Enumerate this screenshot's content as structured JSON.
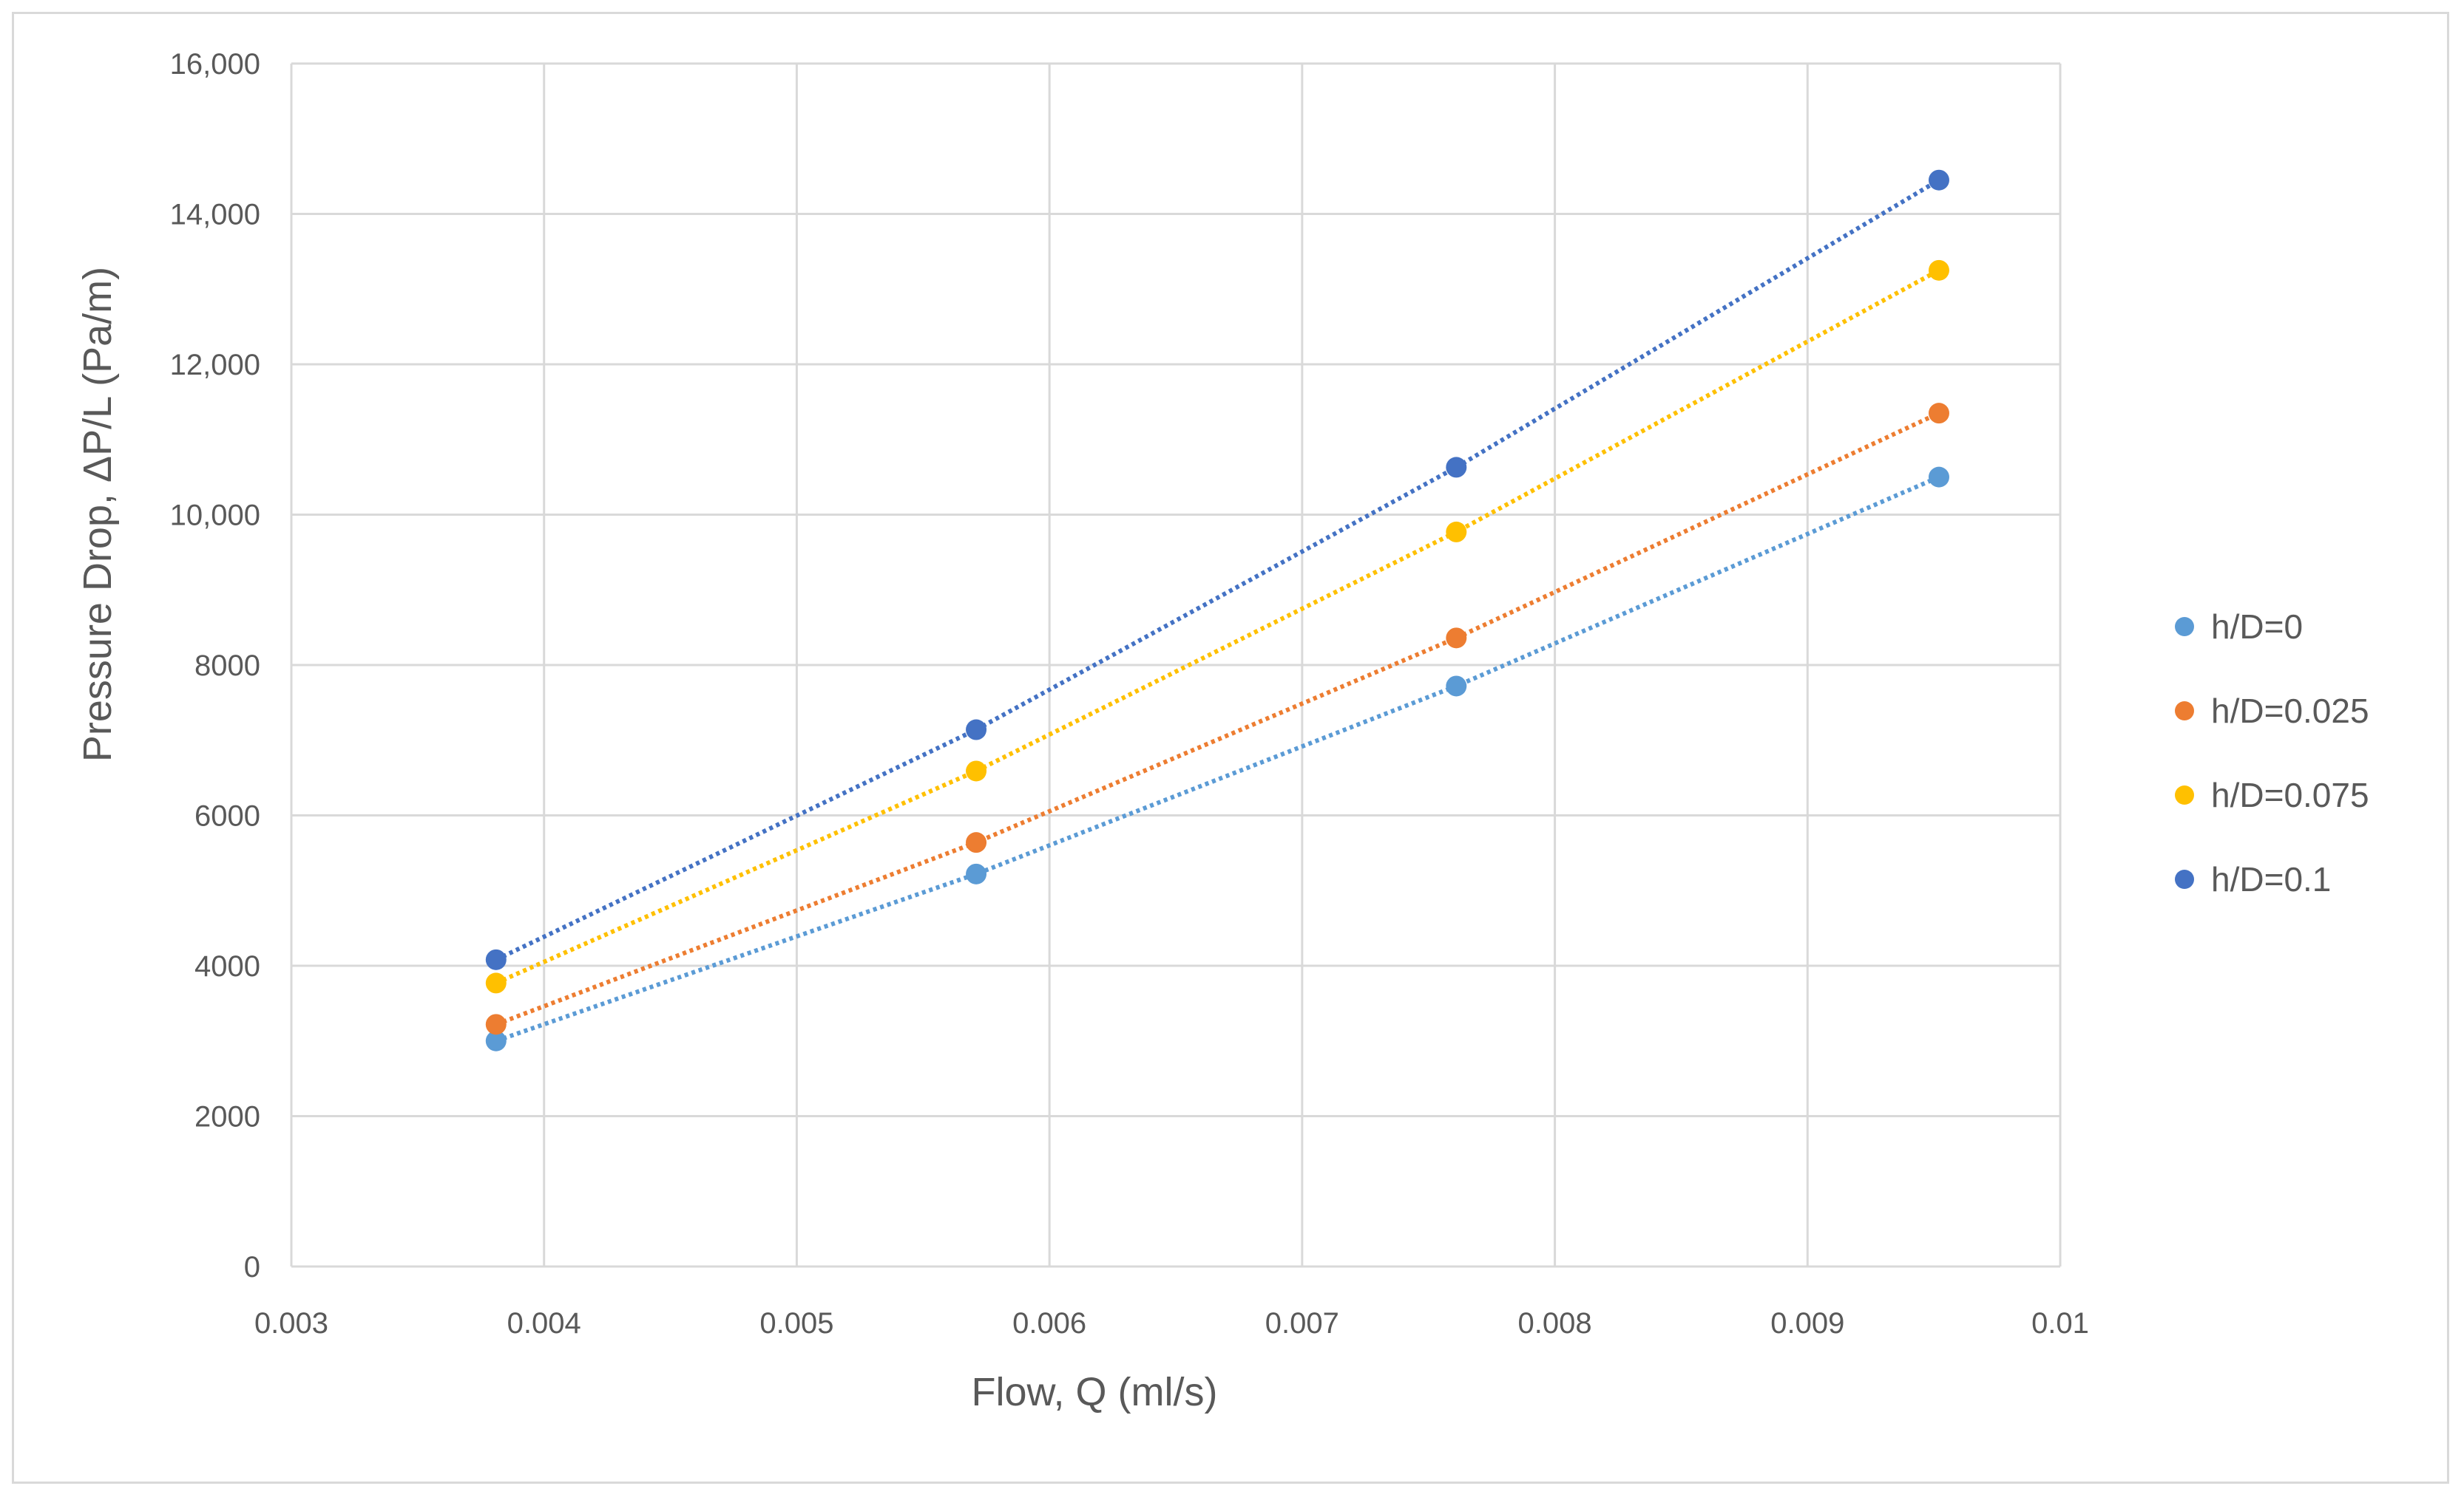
{
  "chart_data": {
    "type": "scatter",
    "title": "",
    "xlabel": "Flow, Q (ml/s)",
    "ylabel": "Pressure Drop, ΔP/L (Pa/m)",
    "xlim": [
      0.003,
      0.01
    ],
    "ylim": [
      0,
      16000
    ],
    "x_ticks": [
      0.003,
      0.004,
      0.005,
      0.006,
      0.007,
      0.008,
      0.009,
      0.01
    ],
    "x_tick_labels": [
      "0.003",
      "0.004",
      "0.005",
      "0.006",
      "0.007",
      "0.008",
      "0.009",
      "0.01"
    ],
    "y_ticks": [
      0,
      2000,
      4000,
      6000,
      8000,
      10000,
      12000,
      14000,
      16000
    ],
    "y_tick_labels": [
      "0",
      "2000",
      "4000",
      "6000",
      "8000",
      "10,000",
      "12,000",
      "14,000",
      "16,000"
    ],
    "grid": true,
    "legend_position": "right",
    "trendline": "dotted linear",
    "x": [
      0.00381,
      0.00571,
      0.00761,
      0.00952
    ],
    "series": [
      {
        "name": "h/D=0",
        "color": "#5b9bd5",
        "values": [
          3000,
          5220,
          7720,
          10500
        ]
      },
      {
        "name": "h/D=0.025",
        "color": "#ed7d31",
        "values": [
          3220,
          5640,
          8360,
          11350
        ]
      },
      {
        "name": "h/D=0.075",
        "color": "#ffc000",
        "values": [
          3770,
          6590,
          9770,
          13250
        ]
      },
      {
        "name": "h/D=0.1",
        "color": "#4472c4",
        "values": [
          4080,
          7140,
          10630,
          14450
        ]
      }
    ]
  }
}
